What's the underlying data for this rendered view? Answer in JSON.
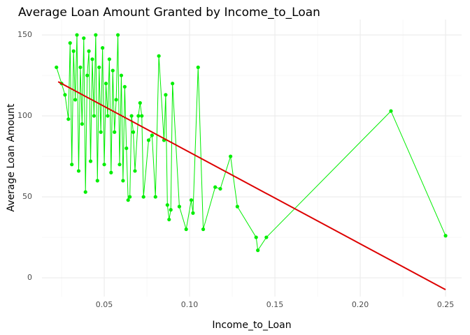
{
  "chart_data": {
    "type": "line",
    "title": "Average Loan Amount Granted by Income_to_Loan",
    "x_label": "Income_to_Loan",
    "y_label": "Average Loan Amount",
    "xlim": [
      0.0135,
      0.2594
    ],
    "ylim": [
      -11.6,
      159.5
    ],
    "xticks": [
      0.05,
      {
        "value": 0.1,
        "label": "0.10"
      },
      0.15,
      {
        "value": 0.2,
        "label": "0.20"
      },
      0.25
    ],
    "yticks": [
      0,
      50,
      100,
      150
    ],
    "x_minor_ticks": [
      0.025,
      0.075,
      0.125,
      0.175,
      0.225
    ],
    "y_minor_ticks": [
      25,
      75,
      125
    ],
    "grid": true,
    "series": [
      {
        "color": "#00ee00",
        "markers": true,
        "x": [
          0.022,
          0.025,
          0.027,
          0.029,
          0.03,
          0.031,
          0.032,
          0.033,
          0.034,
          0.035,
          0.036,
          0.037,
          0.038,
          0.039,
          0.04,
          0.041,
          0.042,
          0.043,
          0.044,
          0.045,
          0.046,
          0.047,
          0.048,
          0.049,
          0.05,
          0.051,
          0.052,
          0.053,
          0.054,
          0.055,
          0.056,
          0.057,
          0.058,
          0.059,
          0.06,
          0.061,
          0.062,
          0.063,
          0.064,
          0.065,
          0.066,
          0.067,
          0.068,
          0.07,
          0.071,
          0.072,
          0.073,
          0.076,
          0.078,
          0.08,
          0.082,
          0.085,
          0.086,
          0.087,
          0.088,
          0.089,
          0.09,
          0.094,
          0.098,
          0.101,
          0.102,
          0.105,
          0.108,
          0.115,
          0.118,
          0.124,
          0.128,
          0.139,
          0.14,
          0.145,
          0.218,
          0.25
        ],
        "values": [
          130,
          120,
          113,
          98,
          145,
          70,
          140,
          110,
          150,
          66,
          130,
          95,
          148,
          53,
          125,
          140,
          72,
          135,
          100,
          150,
          60,
          130,
          90,
          142,
          70,
          120,
          100,
          135,
          65,
          128,
          90,
          110,
          150,
          70,
          125,
          60,
          118,
          80,
          48,
          50,
          100,
          90,
          66,
          100,
          108,
          100,
          50,
          85,
          88,
          50,
          137,
          85,
          113,
          45,
          36,
          42,
          120,
          44,
          30,
          48,
          40,
          130,
          30,
          56,
          55,
          75,
          44,
          25,
          17,
          25,
          103,
          26
        ]
      },
      {
        "color": "#dd0000",
        "markers": false,
        "x": [
          0.023,
          0.25
        ],
        "values": [
          121.1,
          -7.3
        ]
      }
    ]
  }
}
